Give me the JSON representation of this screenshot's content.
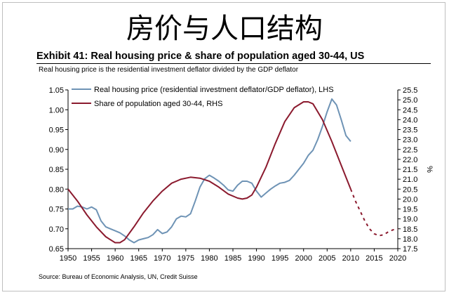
{
  "page_title": "房价与人口结构",
  "exhibit_title": "Exhibit 41: Real housing price & share of population aged 30-44, US",
  "subtitle": "Real housing price is the residential investment deflator divided by the GDP deflator",
  "source": "Source: Bureau of Economic Analysis, UN, Credit Suisse",
  "colors": {
    "price": "#6e93b5",
    "share": "#8b1a2e"
  },
  "chart_data": {
    "type": "line",
    "x_ticks": [
      1950,
      1955,
      1960,
      1965,
      1970,
      1975,
      1980,
      1985,
      1990,
      1995,
      2000,
      2005,
      2010,
      2015,
      2020
    ],
    "xlim": [
      1950,
      2020
    ],
    "y_left": {
      "lim": [
        0.65,
        1.05
      ],
      "ticks": [
        "0.65",
        "0.70",
        "0.75",
        "0.80",
        "0.85",
        "0.90",
        "0.95",
        "1.00",
        "1.05"
      ],
      "label": ""
    },
    "y_right": {
      "lim": [
        17.5,
        25.5
      ],
      "ticks": [
        "17.5",
        "18.0",
        "18.5",
        "19.0",
        "19.5",
        "20.0",
        "20.5",
        "21.0",
        "21.5",
        "22.0",
        "22.5",
        "23.0",
        "23.5",
        "24.0",
        "24.5",
        "25.0",
        "25.5"
      ],
      "label": "%"
    },
    "legend": [
      "Real housing price (residential investment deflator/GDP deflator), LHS",
      "Share of population aged 30-44, RHS"
    ],
    "legend_position": "top-left",
    "series": [
      {
        "name": "Real housing price (residential investment deflator/GDP deflator), LHS",
        "axis": "left",
        "color": "#6e93b5",
        "style": "solid",
        "x": [
          1950,
          1951,
          1952,
          1953,
          1954,
          1955,
          1956,
          1957,
          1958,
          1959,
          1960,
          1961,
          1962,
          1963,
          1964,
          1965,
          1966,
          1967,
          1968,
          1969,
          1970,
          1971,
          1972,
          1973,
          1974,
          1975,
          1976,
          1977,
          1978,
          1979,
          1980,
          1981,
          1982,
          1983,
          1984,
          1985,
          1986,
          1987,
          1988,
          1989,
          1990,
          1991,
          1992,
          1993,
          1994,
          1995,
          1996,
          1997,
          1998,
          1999,
          2000,
          2001,
          2002,
          2003,
          2004,
          2005,
          2006,
          2007,
          2008,
          2009,
          2010
        ],
        "y": [
          0.75,
          0.75,
          0.757,
          0.755,
          0.75,
          0.755,
          0.748,
          0.72,
          0.705,
          0.7,
          0.695,
          0.69,
          0.682,
          0.672,
          0.665,
          0.672,
          0.675,
          0.678,
          0.685,
          0.698,
          0.688,
          0.692,
          0.705,
          0.725,
          0.732,
          0.73,
          0.738,
          0.77,
          0.805,
          0.826,
          0.835,
          0.828,
          0.82,
          0.81,
          0.798,
          0.795,
          0.81,
          0.82,
          0.82,
          0.815,
          0.795,
          0.78,
          0.79,
          0.8,
          0.808,
          0.815,
          0.817,
          0.822,
          0.835,
          0.85,
          0.865,
          0.885,
          0.898,
          0.925,
          0.958,
          0.995,
          1.027,
          1.012,
          0.975,
          0.935,
          0.92
        ]
      },
      {
        "name": "Share of population aged 30-44, RHS",
        "axis": "right",
        "color": "#8b1a2e",
        "style": "solid",
        "x": [
          1950,
          1952,
          1954,
          1956,
          1958,
          1959,
          1960,
          1961,
          1962,
          1964,
          1966,
          1968,
          1970,
          1972,
          1974,
          1976,
          1978,
          1980,
          1982,
          1984,
          1986,
          1987,
          1988,
          1989,
          1990,
          1992,
          1994,
          1996,
          1998,
          2000,
          2001,
          2002,
          2004,
          2006,
          2008,
          2010
        ],
        "y": [
          20.5,
          19.9,
          19.2,
          18.6,
          18.1,
          17.95,
          17.8,
          17.8,
          17.95,
          18.6,
          19.3,
          19.9,
          20.4,
          20.8,
          21.0,
          21.1,
          21.05,
          20.9,
          20.6,
          20.25,
          20.05,
          20.0,
          20.05,
          20.2,
          20.6,
          21.6,
          22.8,
          23.9,
          24.6,
          24.9,
          24.9,
          24.8,
          24.0,
          22.9,
          21.7,
          20.5
        ]
      },
      {
        "name": "Share of population aged 30-44, RHS (projection)",
        "axis": "right",
        "color": "#8b1a2e",
        "style": "dotted",
        "x": [
          2010,
          2011,
          2012,
          2013,
          2014,
          2015,
          2016,
          2017,
          2018,
          2019,
          2020
        ],
        "y": [
          20.5,
          19.9,
          19.4,
          18.9,
          18.5,
          18.25,
          18.15,
          18.2,
          18.35,
          18.45,
          18.5
        ]
      }
    ]
  }
}
